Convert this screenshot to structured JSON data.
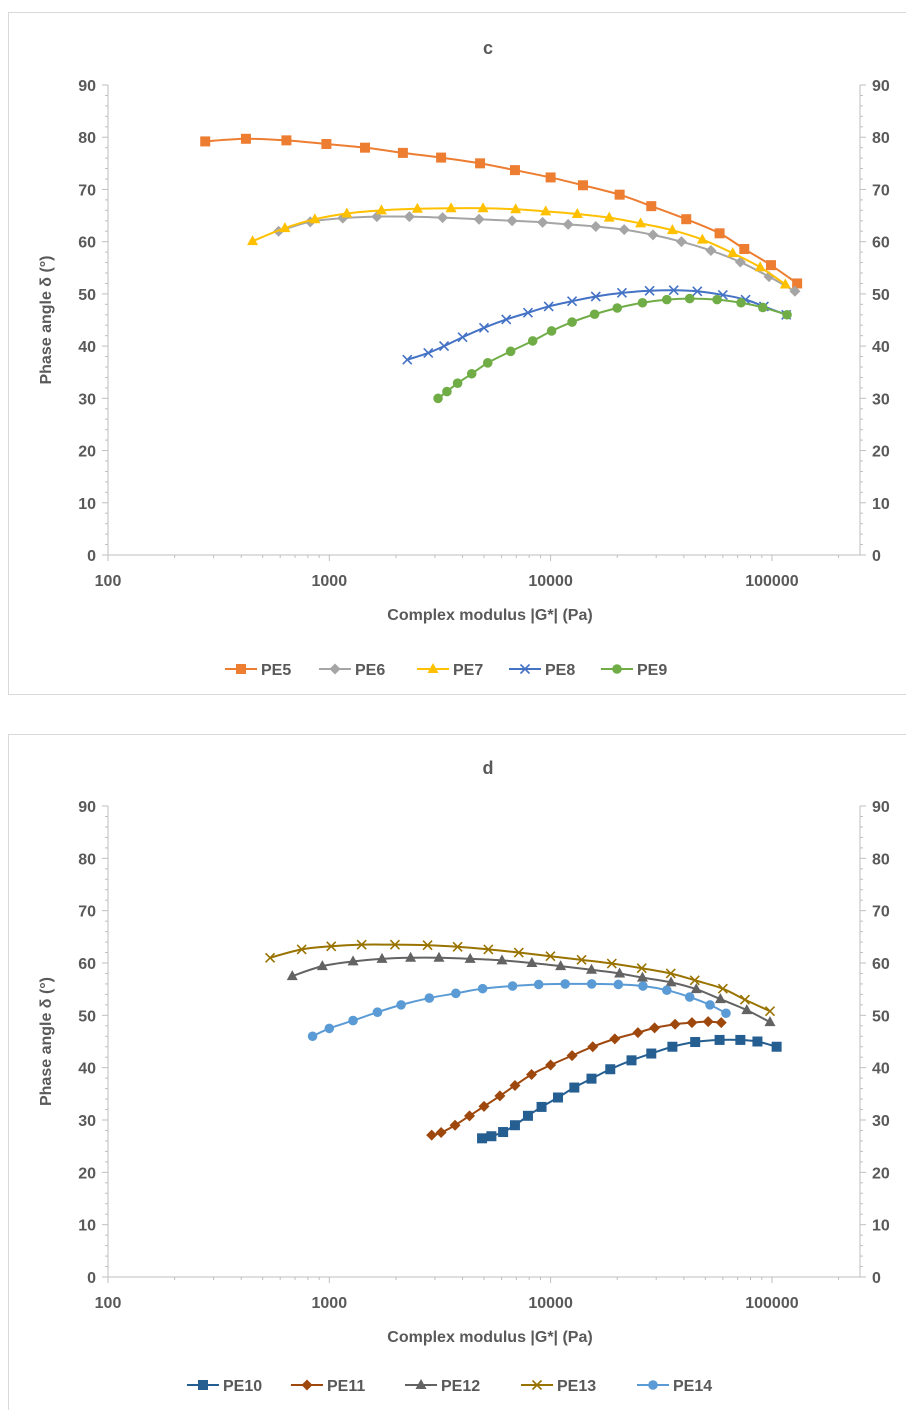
{
  "chart_data": [
    {
      "type": "line",
      "title": "c",
      "xlabel": "Complex modulus |G*| (Pa)",
      "ylabel": "Phase angle δ (°)",
      "x_scale": "log",
      "xlim": [
        100,
        250000
      ],
      "ylim": [
        0,
        90
      ],
      "x_ticks": [
        100,
        1000,
        10000,
        100000
      ],
      "x_tick_labels": [
        "100",
        "1000",
        "10000",
        "100000"
      ],
      "y_ticks": [
        0,
        10,
        20,
        30,
        40,
        50,
        60,
        70,
        80,
        90
      ],
      "y_tick_labels": [
        "0",
        "10",
        "20",
        "30",
        "40",
        "50",
        "60",
        "70",
        "80",
        "90"
      ],
      "secondary_y_axis": true,
      "grid": false,
      "legend_position": "bottom",
      "series": [
        {
          "name": "PE5",
          "color": "#ED7D31",
          "marker": "square",
          "x": [
            275,
            420,
            640,
            970,
            1450,
            2150,
            3200,
            4800,
            6900,
            10000,
            14000,
            20500,
            28500,
            41000,
            58000,
            75000,
            99000,
            130000
          ],
          "y": [
            79.2,
            79.7,
            79.4,
            78.7,
            78.0,
            77.0,
            76.1,
            75.0,
            73.7,
            72.3,
            70.8,
            69.0,
            66.8,
            64.3,
            61.6,
            58.6,
            55.5,
            52.0
          ]
        },
        {
          "name": "PE6",
          "color": "#A5A5A5",
          "marker": "diamond",
          "x": [
            590,
            820,
            1150,
            1640,
            2300,
            3250,
            4750,
            6700,
            9200,
            12000,
            16000,
            21500,
            29000,
            39000,
            53000,
            72000,
            97000,
            127000
          ],
          "y": [
            62.0,
            63.8,
            64.5,
            64.8,
            64.8,
            64.6,
            64.3,
            64.0,
            63.7,
            63.3,
            62.9,
            62.3,
            61.3,
            60.0,
            58.3,
            56.1,
            53.3,
            50.5
          ]
        },
        {
          "name": "PE7",
          "color": "#FFC000",
          "marker": "triangle",
          "x": [
            450,
            630,
            860,
            1200,
            1720,
            2500,
            3550,
            4950,
            6950,
            9500,
            13200,
            18400,
            25500,
            35500,
            48500,
            66500,
            88500,
            115000
          ],
          "y": [
            60.1,
            62.6,
            64.3,
            65.4,
            66.0,
            66.3,
            66.4,
            66.4,
            66.2,
            65.8,
            65.3,
            64.6,
            63.5,
            62.2,
            60.4,
            57.8,
            55.1,
            51.8
          ]
        },
        {
          "name": "PE8",
          "color": "#4472C4",
          "marker": "x",
          "x": [
            2250,
            2800,
            3300,
            4000,
            5000,
            6300,
            7900,
            9800,
            12500,
            16000,
            21000,
            28000,
            36000,
            46000,
            60000,
            76000,
            92000,
            116000
          ],
          "y": [
            37.4,
            38.7,
            40.0,
            41.7,
            43.5,
            45.1,
            46.4,
            47.6,
            48.6,
            49.5,
            50.2,
            50.6,
            50.7,
            50.5,
            49.8,
            48.9,
            47.6,
            46.0
          ]
        },
        {
          "name": "PE9",
          "color": "#70AD47",
          "marker": "circle",
          "x": [
            3100,
            3400,
            3800,
            4400,
            5200,
            6600,
            8300,
            10100,
            12500,
            15800,
            20000,
            26000,
            33500,
            42500,
            56500,
            72500,
            91000,
            117000
          ],
          "y": [
            30.0,
            31.3,
            32.9,
            34.7,
            36.8,
            39.0,
            41.0,
            42.9,
            44.6,
            46.1,
            47.3,
            48.3,
            48.9,
            49.1,
            48.9,
            48.3,
            47.4,
            46.0
          ]
        }
      ]
    },
    {
      "type": "line",
      "title": "d",
      "xlabel": "Complex modulus |G*| (Pa)",
      "ylabel": "Phase angle δ (°)",
      "x_scale": "log",
      "xlim": [
        100,
        250000
      ],
      "ylim": [
        0,
        90
      ],
      "x_ticks": [
        100,
        1000,
        10000,
        100000
      ],
      "x_tick_labels": [
        "100",
        "1000",
        "10000",
        "100000"
      ],
      "y_ticks": [
        0,
        10,
        20,
        30,
        40,
        50,
        60,
        70,
        80,
        90
      ],
      "y_tick_labels": [
        "0",
        "10",
        "20",
        "30",
        "40",
        "50",
        "60",
        "70",
        "80",
        "90"
      ],
      "secondary_y_axis": true,
      "grid": false,
      "legend_position": "bottom",
      "series": [
        {
          "name": "PE10",
          "color": "#255E91",
          "marker": "square",
          "x": [
            4900,
            5400,
            6100,
            6900,
            7900,
            9100,
            10800,
            12800,
            15300,
            18600,
            23200,
            28500,
            35500,
            45000,
            58000,
            72000,
            86000,
            105000
          ],
          "y": [
            26.5,
            26.9,
            27.7,
            29.0,
            30.8,
            32.5,
            34.3,
            36.2,
            37.9,
            39.7,
            41.4,
            42.7,
            44.0,
            44.9,
            45.3,
            45.3,
            45.0,
            44.0
          ]
        },
        {
          "name": "PE11",
          "color": "#9E480E",
          "marker": "diamond",
          "x": [
            2900,
            3200,
            3700,
            4300,
            5000,
            5900,
            6900,
            8200,
            10000,
            12500,
            15500,
            19500,
            24800,
            29500,
            36500,
            43500,
            51500,
            59000
          ],
          "y": [
            27.1,
            27.6,
            29.0,
            30.8,
            32.6,
            34.6,
            36.6,
            38.7,
            40.5,
            42.3,
            44.0,
            45.5,
            46.7,
            47.6,
            48.3,
            48.6,
            48.8,
            48.6
          ]
        },
        {
          "name": "PE12",
          "color": "#636363",
          "marker": "triangle",
          "x": [
            680,
            930,
            1280,
            1730,
            2330,
            3130,
            4330,
            6030,
            8230,
            11100,
            15300,
            20500,
            26000,
            35000,
            45500,
            58500,
            77000,
            98000
          ],
          "y": [
            57.5,
            59.4,
            60.3,
            60.8,
            61.0,
            61.0,
            60.8,
            60.5,
            60.0,
            59.4,
            58.7,
            58.0,
            57.2,
            56.3,
            55.0,
            53.1,
            51.0,
            48.7
          ]
        },
        {
          "name": "PE13",
          "color": "#997300",
          "marker": "x",
          "x": [
            540,
            750,
            1020,
            1400,
            1980,
            2780,
            3800,
            5230,
            7180,
            9980,
            13800,
            18900,
            25800,
            34900,
            44800,
            60000,
            75500,
            98000
          ],
          "y": [
            61.0,
            62.6,
            63.2,
            63.5,
            63.5,
            63.4,
            63.1,
            62.6,
            62.0,
            61.3,
            60.6,
            59.9,
            59.0,
            58.0,
            56.7,
            55.1,
            53.0,
            50.8
          ]
        },
        {
          "name": "PE14",
          "color": "#5B9BD5",
          "marker": "circle",
          "x": [
            840,
            1000,
            1280,
            1650,
            2110,
            2830,
            3730,
            4930,
            6730,
            8830,
            11630,
            15330,
            20230,
            26130,
            33500,
            42500,
            52500,
            62000
          ],
          "y": [
            46.0,
            47.5,
            49.0,
            50.6,
            52.0,
            53.3,
            54.2,
            55.1,
            55.6,
            55.9,
            56.0,
            56.0,
            55.9,
            55.6,
            54.8,
            53.5,
            52.0,
            50.4
          ]
        }
      ]
    }
  ]
}
